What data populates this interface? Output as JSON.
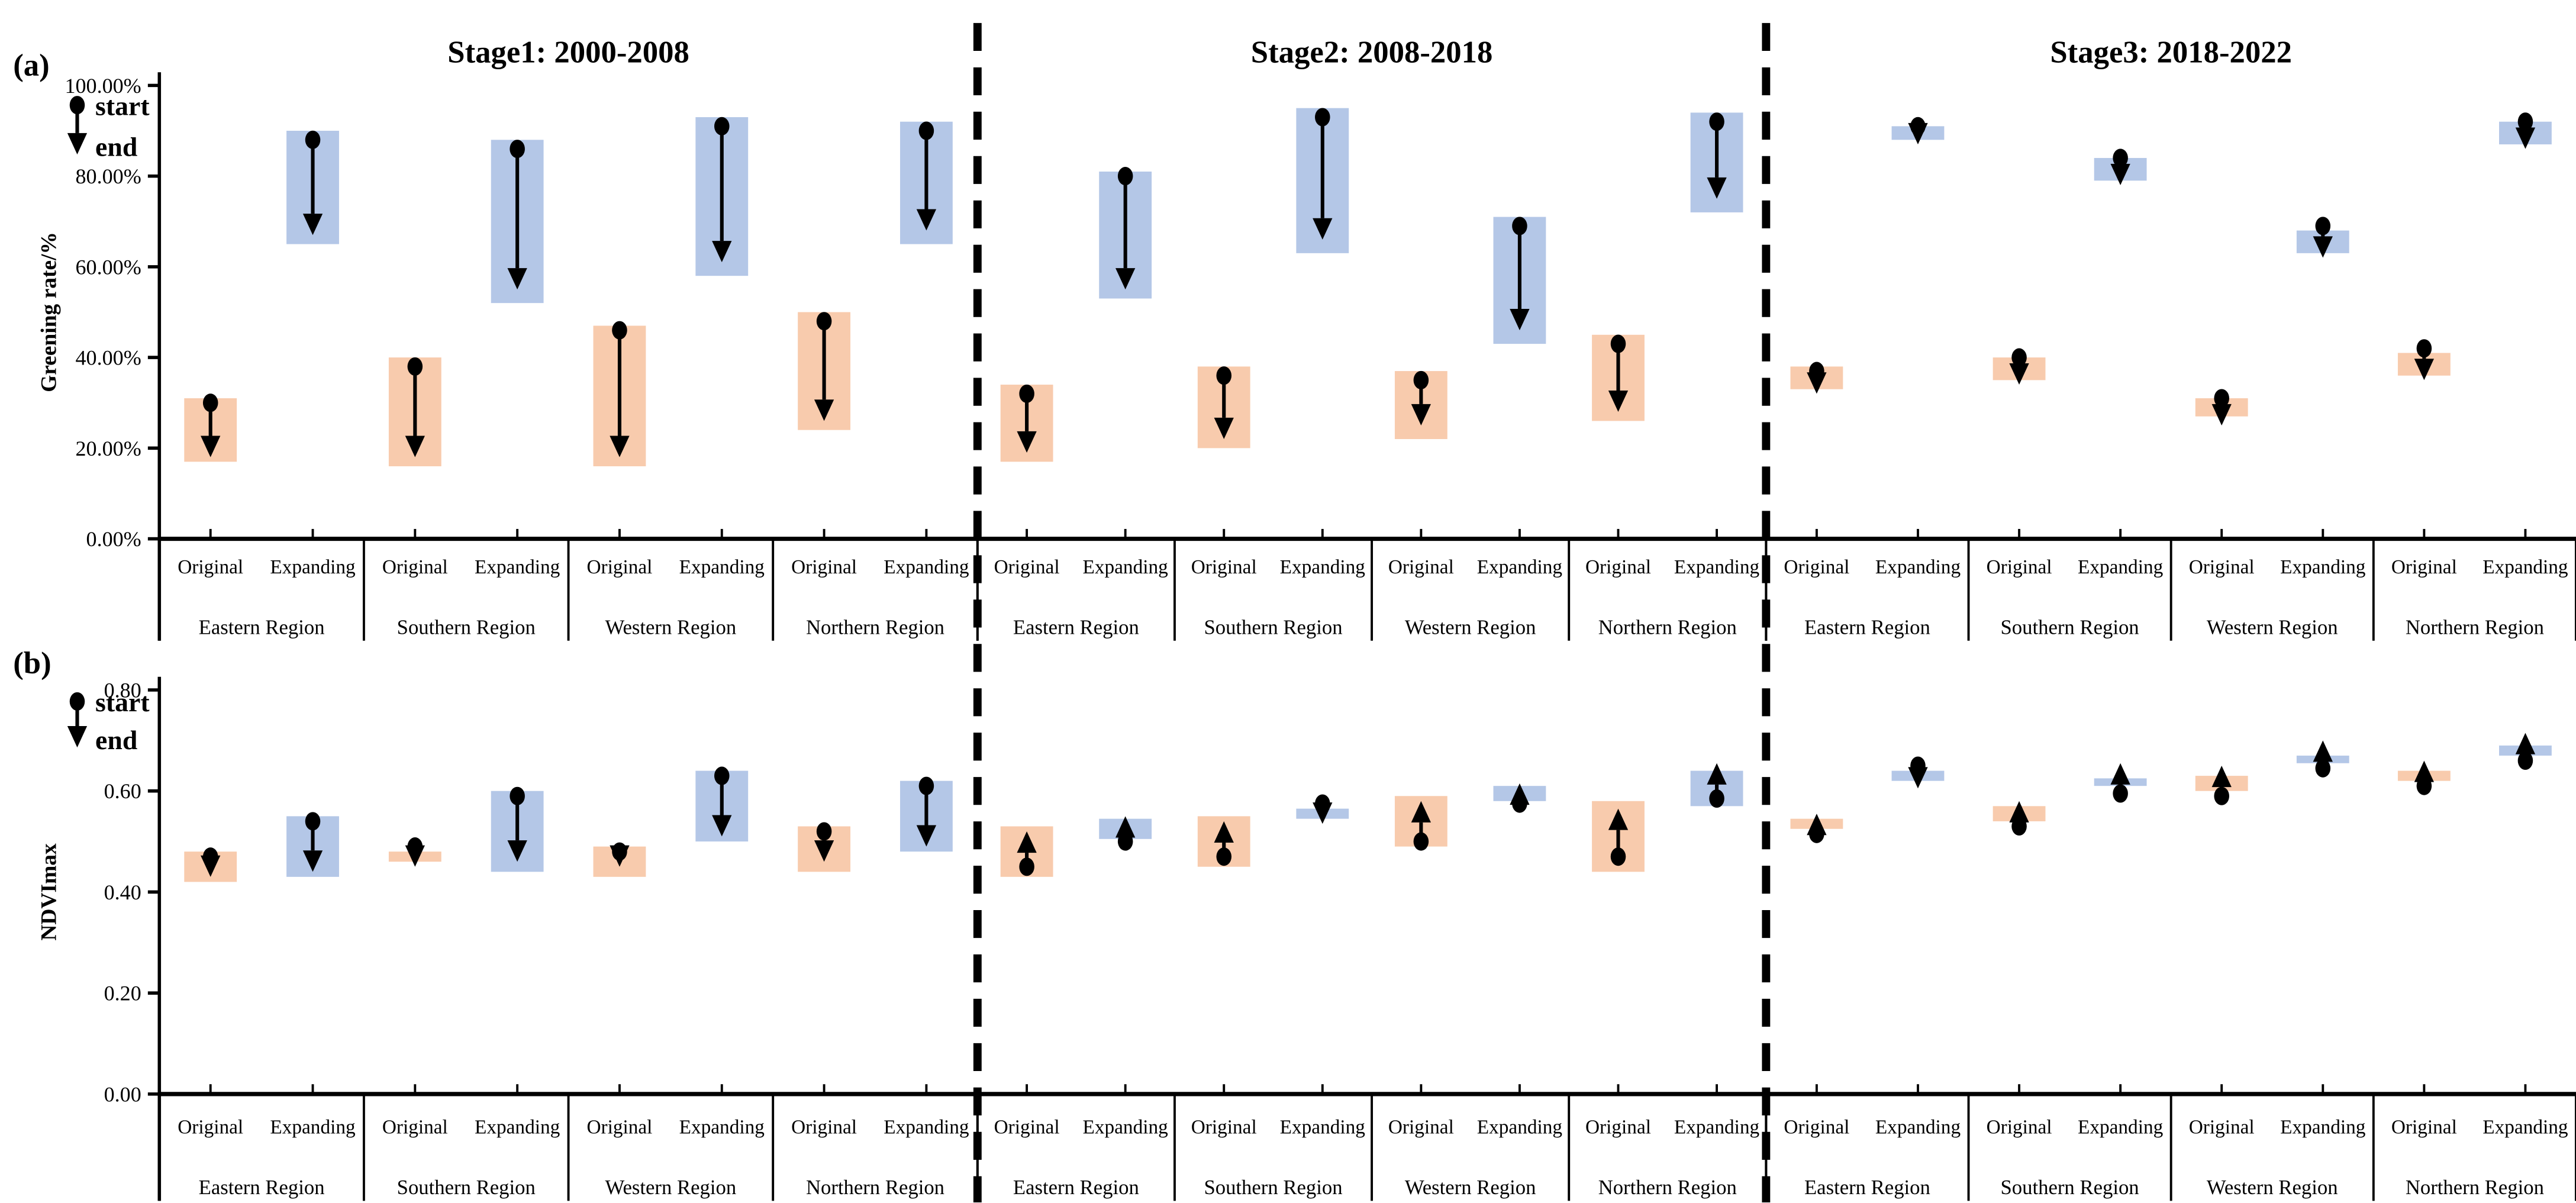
{
  "chart_data": {
    "type": "bar",
    "subtype": "floating-range-bars-with-start-end-arrows",
    "stage_titles": [
      "Stage1: 2000-2008",
      "Stage2: 2008-2018",
      "Stage3: 2018-2022"
    ],
    "regions": [
      "Eastern Region",
      "Southern Region",
      "Western Region",
      "Northern Region"
    ],
    "series_types": [
      "Original",
      "Expanding"
    ],
    "slot_order": "for each stage: Eastern-Original, Eastern-Expanding, Southern-Original, Southern-Expanding, Western-Original, Western-Expanding, Northern-Original, Northern-Expanding",
    "value_format": "[bar_low, bar_high, start, end]",
    "legend": {
      "start_label": "start",
      "end_label": "end"
    },
    "colors": {
      "original_fill": "#F8CBAD",
      "expanding_fill": "#B4C7E7",
      "marker": "#000000",
      "axis": "#000000"
    },
    "panels": [
      {
        "marker": "(a)",
        "ylabel": "Greening rate/%",
        "ymin": 0,
        "ymax": 100,
        "ytick_values": [
          100,
          80,
          60,
          40,
          20,
          0
        ],
        "ytick_labels": [
          "100.00%",
          "80.00%",
          "60.00%",
          "40.00%",
          "20.00%",
          "0.00%"
        ],
        "stages": [
          [
            [
              17,
              31,
              30,
              18
            ],
            [
              65,
              90,
              88,
              67
            ],
            [
              16,
              40,
              38,
              18
            ],
            [
              52,
              88,
              86,
              55
            ],
            [
              16,
              47,
              46,
              18
            ],
            [
              58,
              93,
              91,
              61
            ],
            [
              24,
              50,
              48,
              26
            ],
            [
              65,
              92,
              90,
              68
            ]
          ],
          [
            [
              17,
              34,
              32,
              19
            ],
            [
              53,
              81,
              80,
              55
            ],
            [
              20,
              38,
              36,
              22
            ],
            [
              63,
              95,
              93,
              66
            ],
            [
              22,
              37,
              35,
              25
            ],
            [
              43,
              71,
              69,
              46
            ],
            [
              26,
              45,
              43,
              28
            ],
            [
              72,
              94,
              92,
              75
            ]
          ],
          [
            [
              33,
              38,
              37,
              32
            ],
            [
              88,
              91,
              91,
              87
            ],
            [
              35,
              40,
              40,
              34
            ],
            [
              79,
              84,
              84,
              78
            ],
            [
              27,
              31,
              31,
              25
            ],
            [
              63,
              68,
              69,
              62
            ],
            [
              36,
              41,
              42,
              35
            ],
            [
              87,
              92,
              92,
              86
            ]
          ]
        ]
      },
      {
        "marker": "(b)",
        "ylabel": "NDVImax",
        "ymin": 0,
        "ymax": 0.8,
        "ytick_values": [
          0.8,
          0.6,
          0.4,
          0.2,
          0
        ],
        "ytick_labels": [
          "0.80",
          "0.60",
          "0.40",
          "0.20",
          "0.00"
        ],
        "stages": [
          [
            [
              0.42,
              0.48,
              0.47,
              0.43
            ],
            [
              0.43,
              0.55,
              0.54,
              0.44
            ],
            [
              0.46,
              0.48,
              0.49,
              0.45
            ],
            [
              0.44,
              0.6,
              0.59,
              0.46
            ],
            [
              0.43,
              0.49,
              0.48,
              0.45
            ],
            [
              0.5,
              0.64,
              0.63,
              0.51
            ],
            [
              0.44,
              0.53,
              0.52,
              0.46
            ],
            [
              0.48,
              0.62,
              0.61,
              0.49
            ]
          ],
          [
            [
              0.43,
              0.53,
              0.45,
              0.52
            ],
            [
              0.505,
              0.545,
              0.5,
              0.55
            ],
            [
              0.45,
              0.55,
              0.47,
              0.54
            ],
            [
              0.545,
              0.565,
              0.575,
              0.535
            ],
            [
              0.49,
              0.59,
              0.5,
              0.58
            ],
            [
              0.58,
              0.61,
              0.575,
              0.615
            ],
            [
              0.44,
              0.58,
              0.47,
              0.565
            ],
            [
              0.57,
              0.64,
              0.585,
              0.655
            ]
          ],
          [
            [
              0.525,
              0.545,
              0.515,
              0.555
            ],
            [
              0.62,
              0.64,
              0.65,
              0.605
            ],
            [
              0.54,
              0.57,
              0.53,
              0.58
            ],
            [
              0.61,
              0.625,
              0.595,
              0.655
            ],
            [
              0.6,
              0.63,
              0.59,
              0.65
            ],
            [
              0.655,
              0.67,
              0.645,
              0.7
            ],
            [
              0.62,
              0.64,
              0.61,
              0.66
            ],
            [
              0.67,
              0.69,
              0.66,
              0.715
            ]
          ]
        ]
      }
    ]
  }
}
